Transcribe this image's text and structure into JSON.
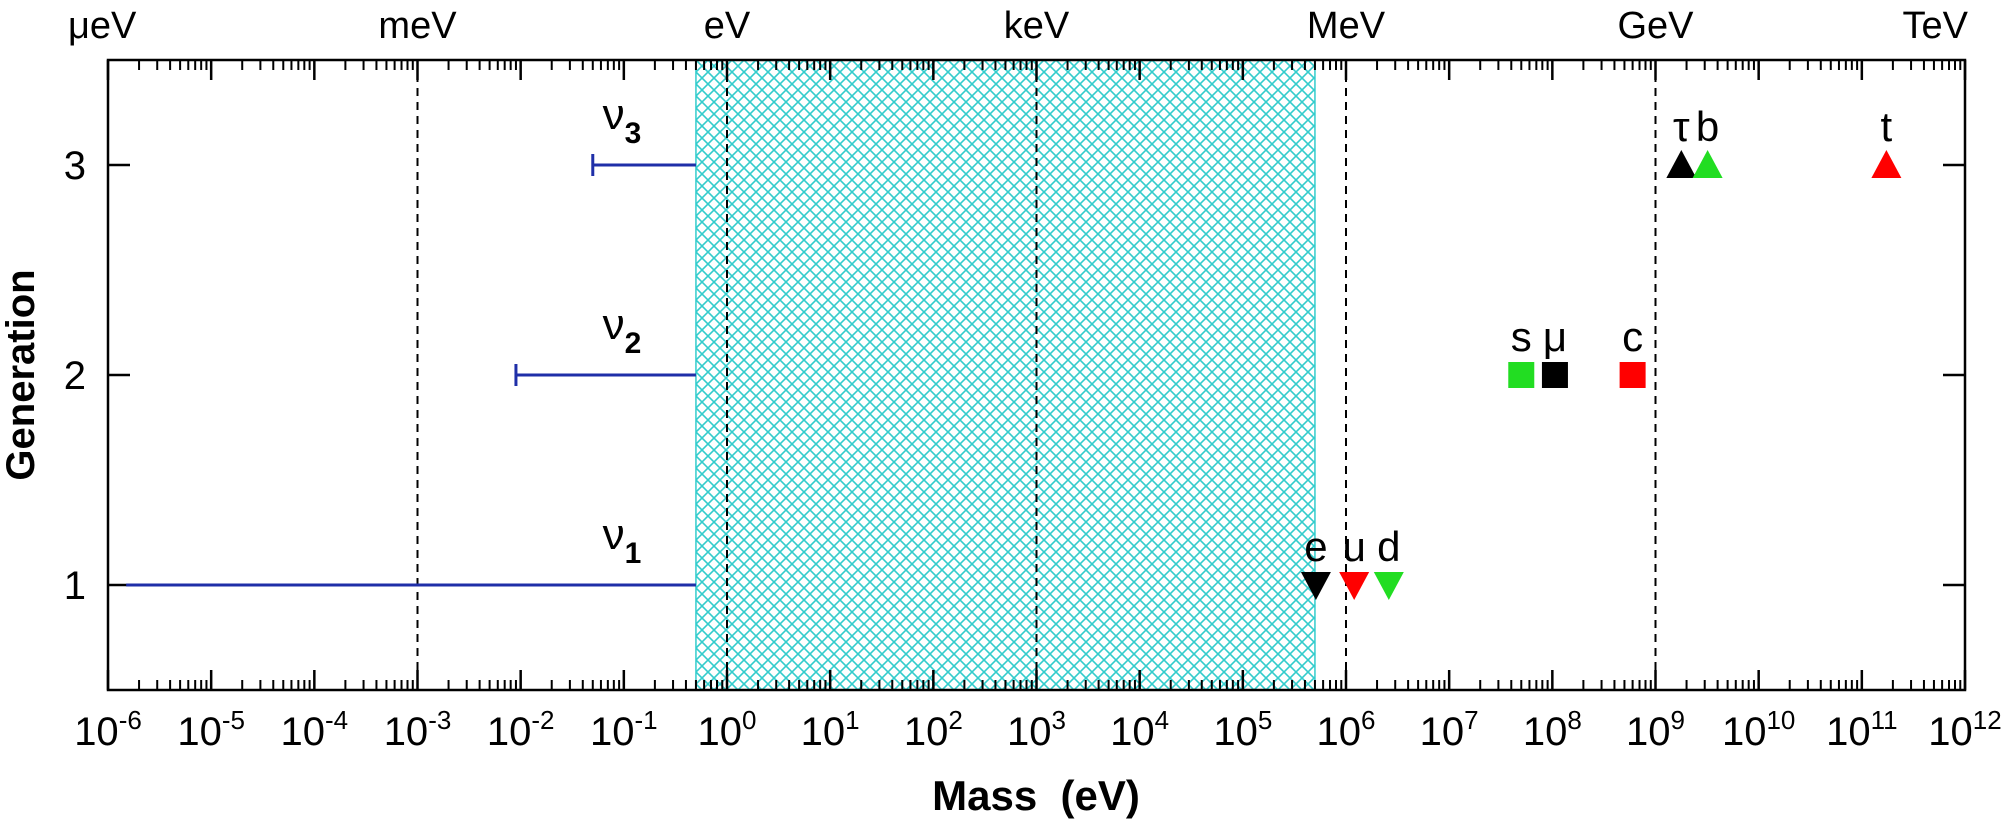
{
  "chart_data": {
    "type": "scatter",
    "xlabel": "Mass  (eV)",
    "ylabel": "Generation",
    "x_scale": "log",
    "xlim": [
      1e-06,
      1000000000000.0
    ],
    "ylim": [
      0.5,
      3.5
    ],
    "x_ticks": [
      {
        "base": "10",
        "exp": "-6"
      },
      {
        "base": "10",
        "exp": "-5"
      },
      {
        "base": "10",
        "exp": "-4"
      },
      {
        "base": "10",
        "exp": "-3"
      },
      {
        "base": "10",
        "exp": "-2"
      },
      {
        "base": "10",
        "exp": "-1"
      },
      {
        "base": "10",
        "exp": "0"
      },
      {
        "base": "10",
        "exp": "1"
      },
      {
        "base": "10",
        "exp": "2"
      },
      {
        "base": "10",
        "exp": "3"
      },
      {
        "base": "10",
        "exp": "4"
      },
      {
        "base": "10",
        "exp": "5"
      },
      {
        "base": "10",
        "exp": "6"
      },
      {
        "base": "10",
        "exp": "7"
      },
      {
        "base": "10",
        "exp": "8"
      },
      {
        "base": "10",
        "exp": "9"
      },
      {
        "base": "10",
        "exp": "10"
      },
      {
        "base": "10",
        "exp": "11"
      },
      {
        "base": "10",
        "exp": "12"
      }
    ],
    "y_ticks": [
      "1",
      "2",
      "3"
    ],
    "top_units": [
      {
        "label": "μeV",
        "x": 1e-06
      },
      {
        "label": "meV",
        "x": 0.001
      },
      {
        "label": "eV",
        "x": 1
      },
      {
        "label": "keV",
        "x": 1000.0
      },
      {
        "label": "MeV",
        "x": 1000000.0
      },
      {
        "label": "GeV",
        "x": 1000000000.0
      },
      {
        "label": "TeV",
        "x": 1000000000000.0
      }
    ],
    "dashed_lines_x": [
      0.001,
      1,
      1000.0,
      1000000.0,
      1000000000.0
    ],
    "excluded_band": {
      "x_min": 0.5,
      "x_max": 500000.0,
      "color": "#33cccc"
    },
    "neutrinos": [
      {
        "label": "ν",
        "sub": "1",
        "y": 1,
        "x_min": 1.5e-06,
        "x_max": 0.5,
        "end_cap": false,
        "color": "#1f2fa8"
      },
      {
        "label": "ν",
        "sub": "2",
        "y": 2,
        "x_min": 0.009,
        "x_max": 0.5,
        "end_cap": true,
        "color": "#1f2fa8"
      },
      {
        "label": "ν",
        "sub": "3",
        "y": 3,
        "x_min": 0.05,
        "x_max": 0.5,
        "end_cap": true,
        "color": "#1f2fa8"
      }
    ],
    "particles": [
      {
        "label": "e",
        "x": 511000.0,
        "y": 1,
        "marker": "triangle-down",
        "color": "#000000"
      },
      {
        "label": "u",
        "x": 1200000.0,
        "y": 1,
        "marker": "triangle-down",
        "color": "#ff0000"
      },
      {
        "label": "d",
        "x": 2600000.0,
        "y": 1,
        "marker": "triangle-down",
        "color": "#22dd22"
      },
      {
        "label": "s",
        "x": 50000000.0,
        "y": 2,
        "marker": "square",
        "color": "#22dd22"
      },
      {
        "label": "μ",
        "x": 106000000.0,
        "y": 2,
        "marker": "square",
        "color": "#000000"
      },
      {
        "label": "c",
        "x": 600000000.0,
        "y": 2,
        "marker": "square",
        "color": "#ff0000"
      },
      {
        "label": "τ",
        "x": 1780000000.0,
        "y": 3,
        "marker": "triangle-up",
        "color": "#000000"
      },
      {
        "label": "b",
        "x": 3200000000.0,
        "y": 3,
        "marker": "triangle-up",
        "color": "#22dd22"
      },
      {
        "label": "t",
        "x": 173000000000.0,
        "y": 3,
        "marker": "triangle-up",
        "color": "#ff0000"
      }
    ]
  }
}
